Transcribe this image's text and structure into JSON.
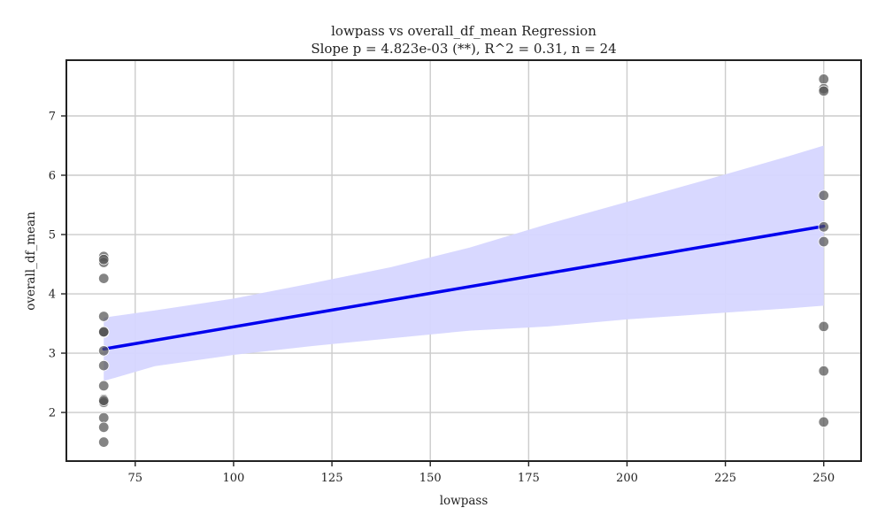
{
  "chart_data": {
    "type": "scatter",
    "title": "lowpass vs overall_df_mean Regression",
    "subtitle": "Slope p = 4.823e-03 (**), R^2 = 0.31, n = 24",
    "xlabel": "lowpass",
    "ylabel": "overall_df_mean",
    "xlim": [
      57.5,
      259.5
    ],
    "ylim": [
      1.18,
      7.94
    ],
    "xticks": [
      75,
      100,
      125,
      150,
      175,
      200,
      225,
      250
    ],
    "yticks": [
      2,
      3,
      4,
      5,
      6,
      7
    ],
    "grid": true,
    "colors": {
      "points": "#555555",
      "regression_line": "#0000ee",
      "confidence_band": "#d6d6ff"
    },
    "points": {
      "x": [
        67,
        67,
        67,
        67,
        67,
        67,
        67,
        67,
        67,
        67,
        67,
        67,
        67,
        67,
        67,
        67,
        67,
        250,
        250,
        250,
        250,
        250,
        250,
        250
      ],
      "y": [
        4.63,
        4.53,
        4.26,
        3.62,
        3.36,
        3.35,
        3.04,
        2.79,
        2.45,
        2.22,
        2.17,
        1.91,
        1.75,
        1.5,
        4.58,
        3.36,
        2.2,
        7.62,
        7.46,
        7.42,
        5.66,
        5.13,
        4.88,
        3.45
      ]
    },
    "extra_points": {
      "x": [
        250,
        250
      ],
      "y": [
        2.7,
        1.84
      ]
    },
    "regression": {
      "x": [
        67,
        250
      ],
      "y": [
        3.07,
        5.14
      ]
    },
    "confidence_band": {
      "x": [
        67,
        80,
        100,
        120,
        140,
        160,
        180,
        200,
        220,
        240,
        250
      ],
      "upper": [
        3.6,
        3.72,
        3.92,
        4.18,
        4.45,
        4.78,
        5.18,
        5.55,
        5.92,
        6.3,
        6.5
      ],
      "lower": [
        2.53,
        2.78,
        2.97,
        3.12,
        3.25,
        3.38,
        3.45,
        3.57,
        3.66,
        3.75,
        3.8
      ]
    }
  }
}
